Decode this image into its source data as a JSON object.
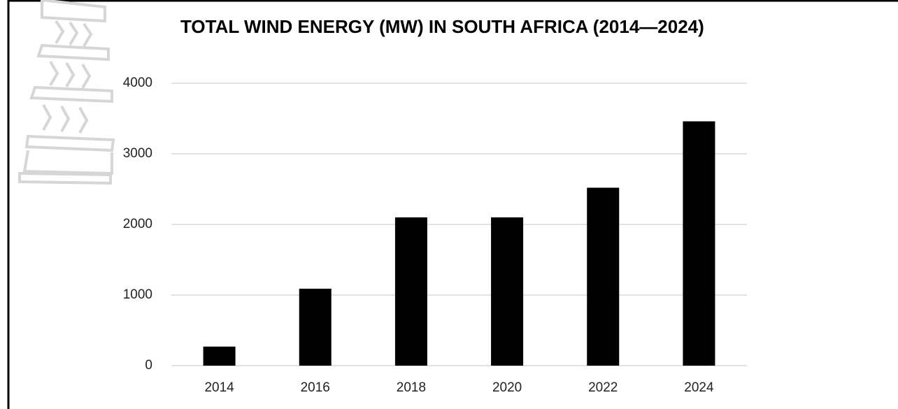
{
  "chart_data": {
    "type": "bar",
    "title": "TOTAL WIND ENERGY (MW) IN SOUTH AFRICA (2014—2024)",
    "categories": [
      "2014",
      "2016",
      "2018",
      "2020",
      "2022",
      "2024"
    ],
    "values": [
      270,
      1090,
      2100,
      2100,
      2520,
      3460
    ],
    "color": "#000000",
    "ylim": [
      0,
      4000
    ],
    "yticks": [
      0,
      1000,
      2000,
      3000,
      4000
    ],
    "grid": true
  }
}
